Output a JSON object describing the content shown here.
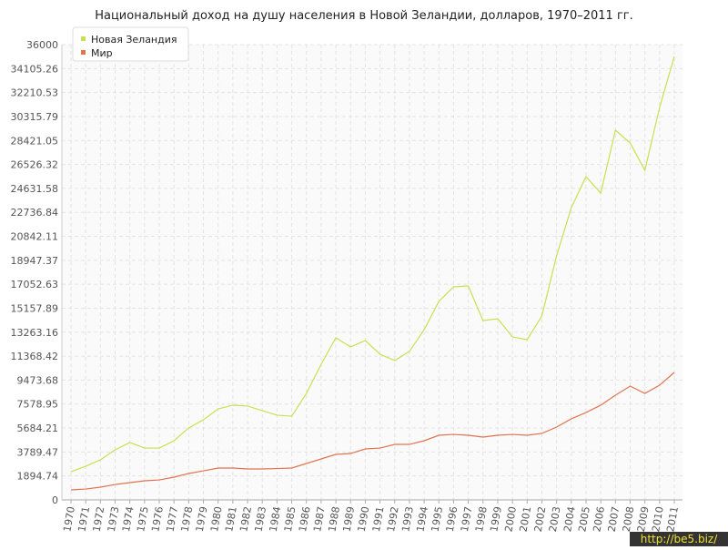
{
  "chart_data": {
    "type": "line",
    "title": "Национальный доход на душу населения в Новой Зеландии, долларов, 1970–2011 гг.",
    "categories": [
      "1970",
      "1971",
      "1972",
      "1973",
      "1974",
      "1975",
      "1976",
      "1977",
      "1978",
      "1979",
      "1980",
      "1981",
      "1982",
      "1983",
      "1984",
      "1985",
      "1986",
      "1987",
      "1988",
      "1989",
      "1990",
      "1991",
      "1992",
      "1993",
      "1994",
      "1995",
      "1996",
      "1997",
      "1998",
      "1999",
      "2000",
      "2001",
      "2002",
      "2003",
      "2004",
      "2005",
      "2006",
      "2007",
      "2008",
      "2009",
      "2010",
      "2011"
    ],
    "series": [
      {
        "name": "Новая Зеландия",
        "color": "#c8e052",
        "values": [
          2230,
          2660,
          3170,
          3960,
          4540,
          4100,
          4100,
          4680,
          5690,
          6340,
          7200,
          7490,
          7420,
          7060,
          6700,
          6620,
          8420,
          10730,
          12820,
          12100,
          12600,
          11520,
          11020,
          11740,
          13460,
          15700,
          16850,
          16920,
          14180,
          14330,
          12890,
          12670,
          14540,
          19300,
          23110,
          25560,
          24260,
          29230,
          28220,
          26060,
          31030,
          35060
        ]
      },
      {
        "name": "Мир",
        "color": "#e0744f",
        "values": [
          790,
          860,
          1010,
          1220,
          1370,
          1510,
          1580,
          1800,
          2090,
          2300,
          2520,
          2520,
          2450,
          2450,
          2480,
          2520,
          2880,
          3240,
          3600,
          3670,
          4030,
          4100,
          4390,
          4390,
          4680,
          5110,
          5180,
          5110,
          4970,
          5110,
          5180,
          5110,
          5260,
          5760,
          6410,
          6910,
          7490,
          8280,
          9000,
          8420,
          9070,
          10080
        ]
      }
    ],
    "ylim": [
      0,
      36000
    ],
    "yticks": [
      0,
      1894.74,
      3789.47,
      5684.21,
      7578.95,
      9473.68,
      11368.42,
      13263.16,
      15157.89,
      17052.63,
      18947.37,
      20842.11,
      22736.84,
      24631.58,
      26526.32,
      28421.05,
      30315.79,
      32210.53,
      34105.26,
      36000
    ],
    "grid": true,
    "legend": "top-left"
  },
  "watermark": "http://be5.biz/"
}
